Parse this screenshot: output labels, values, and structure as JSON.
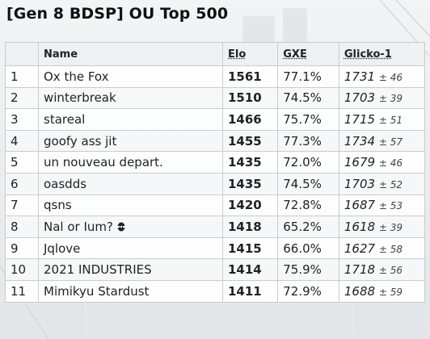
{
  "title": "[Gen 8 BDSP] OU Top 500",
  "columns": {
    "rank": "",
    "name": "Name",
    "elo": "Elo",
    "gxe": "GXE",
    "glicko": "Glicko-1"
  },
  "rows": [
    {
      "rank": "1",
      "name": "Ox the Fox",
      "elo": "1561",
      "gxe": "77.1%",
      "glicko": "1731",
      "dev": "± 46"
    },
    {
      "rank": "2",
      "name": "winterbreak",
      "elo": "1510",
      "gxe": "74.5%",
      "glicko": "1703",
      "dev": "± 39"
    },
    {
      "rank": "3",
      "name": "stareal",
      "elo": "1466",
      "gxe": "75.7%",
      "glicko": "1715",
      "dev": "± 51"
    },
    {
      "rank": "4",
      "name": "goofy ass jit",
      "elo": "1455",
      "gxe": "77.3%",
      "glicko": "1734",
      "dev": "± 57"
    },
    {
      "rank": "5",
      "name": "un nouveau depart.",
      "elo": "1435",
      "gxe": "72.0%",
      "glicko": "1679",
      "dev": "± 46"
    },
    {
      "rank": "6",
      "name": "oasdds",
      "elo": "1435",
      "gxe": "74.5%",
      "glicko": "1703",
      "dev": "± 52"
    },
    {
      "rank": "7",
      "name": "qsns",
      "elo": "1420",
      "gxe": "72.8%",
      "glicko": "1687",
      "dev": "± 53"
    },
    {
      "rank": "8",
      "name": "Nal or Ium?",
      "elo": "1418",
      "gxe": "65.2%",
      "glicko": "1618",
      "dev": "± 39",
      "icon": "pokemon-sprite-icon"
    },
    {
      "rank": "9",
      "name": "Jqlove",
      "elo": "1415",
      "gxe": "66.0%",
      "glicko": "1627",
      "dev": "± 58"
    },
    {
      "rank": "10",
      "name": "2021 INDUSTRIES",
      "elo": "1414",
      "gxe": "75.9%",
      "glicko": "1718",
      "dev": "± 56"
    },
    {
      "rank": "11",
      "name": "Mimikyu Stardust",
      "elo": "1411",
      "gxe": "72.9%",
      "glicko": "1688",
      "dev": "± 59"
    }
  ]
}
